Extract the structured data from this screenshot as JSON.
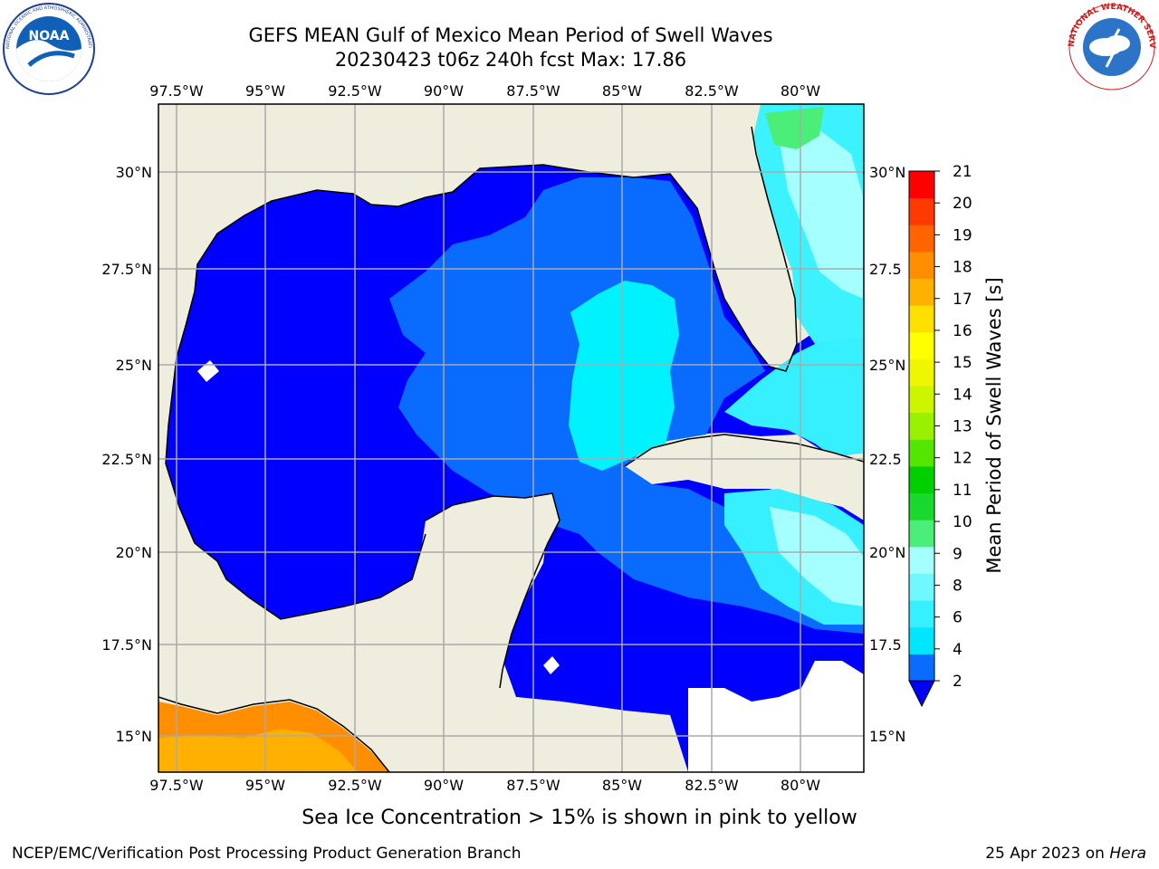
{
  "header": {
    "title_line1": "GEFS MEAN Gulf of Mexico Mean Period of Swell Waves",
    "title_line2": "20230423 t06z 240h fcst   Max: 17.86"
  },
  "logos": {
    "noaa_text": "NOAA",
    "noaa_ring": "NATIONAL OCEANIC AND ATMOSPHERIC ADMINISTRATION · U.S. DEPARTMENT OF COMMERCE",
    "nws_ring": "NATIONAL WEATHER SERVICE"
  },
  "map": {
    "lon_labels": [
      "97.5°W",
      "95°W",
      "92.5°W",
      "90°W",
      "87.5°W",
      "85°W",
      "82.5°W",
      "80°W"
    ],
    "lat_labels_left": [
      "30°N",
      "27.5°N",
      "25°N",
      "22.5°N",
      "20°N",
      "17.5°N",
      "15°N"
    ],
    "lat_labels_right": [
      "30°N",
      "27.5",
      "25°N",
      "22.5",
      "20°N",
      "17.5",
      "15°N"
    ],
    "colors": {
      "land": "#efeddd",
      "coast": "#000000",
      "grid": "#aaaaaa",
      "nodata": "#ffffff"
    }
  },
  "colorbar": {
    "label": "Mean Period of Swell Waves [s]",
    "ticks": [
      "21",
      "20",
      "19",
      "18",
      "17",
      "16",
      "15",
      "14",
      "13",
      "12",
      "11",
      "10",
      "9",
      "8",
      "6",
      "4",
      "2"
    ],
    "colors_bottom_to_top": [
      "#0a6cff",
      "#00e6ff",
      "#37f0ff",
      "#6ff8ff",
      "#a6ffff",
      "#4cee7a",
      "#19d92f",
      "#00d000",
      "#55e600",
      "#99f000",
      "#cdf500",
      "#f0f500",
      "#ffff00",
      "#ffe000",
      "#ffb000",
      "#ff8f00",
      "#ff6400",
      "#ff3a00",
      "#ff0000"
    ],
    "extend_color": "#0000ff"
  },
  "footer": {
    "note": "Sea Ice Concentration > 15% is shown in pink to yellow",
    "credit_left": "NCEP/EMC/Verification Post Processing Product Generation Branch",
    "credit_right_prefix": "25 Apr 2023 on ",
    "credit_right_host": "Hera"
  }
}
